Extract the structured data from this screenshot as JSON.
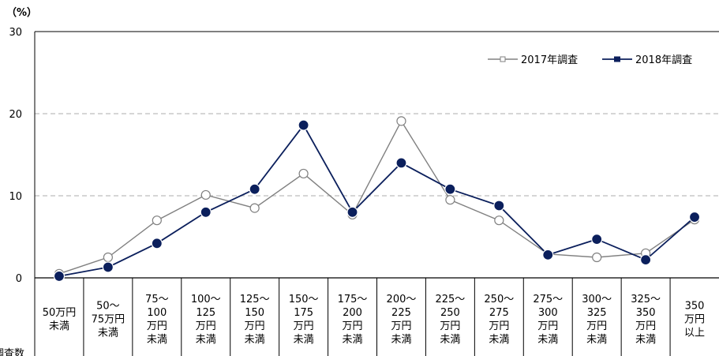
{
  "chart_data": {
    "type": "line",
    "y_unit": "（%）",
    "ylim": [
      0,
      30
    ],
    "y_ticks": [
      "0",
      "10",
      "20",
      "30"
    ],
    "grid": true,
    "legend_position": "top-right",
    "categories": [
      [
        "50万円",
        "未満"
      ],
      [
        "50～",
        "75万円",
        "未満"
      ],
      [
        "75～",
        "100",
        "万円",
        "未満"
      ],
      [
        "100～",
        "125",
        "万円",
        "未満"
      ],
      [
        "125～",
        "150",
        "万円",
        "未満"
      ],
      [
        "150～",
        "175",
        "万円",
        "未満"
      ],
      [
        "175～",
        "200",
        "万円",
        "未満"
      ],
      [
        "200～",
        "225",
        "万円",
        "未満"
      ],
      [
        "225～",
        "250",
        "万円",
        "未満"
      ],
      [
        "250～",
        "275",
        "万円",
        "未満"
      ],
      [
        "275～",
        "300",
        "万円",
        "未満"
      ],
      [
        "300～",
        "325",
        "万円",
        "未満"
      ],
      [
        "325～",
        "350",
        "万円",
        "未満"
      ],
      [
        "350",
        "万円",
        "以上"
      ]
    ],
    "series": [
      {
        "name": "2017年調査",
        "color": "#808080",
        "marker": "open-circle",
        "values": [
          0.5,
          2.5,
          7.0,
          10.1,
          8.5,
          12.7,
          7.7,
          19.1,
          9.5,
          7.0,
          2.9,
          2.5,
          3.0,
          7.1
        ]
      },
      {
        "name": "2018年調査",
        "color": "#0b1f5c",
        "marker": "filled-circle",
        "values": [
          0.2,
          1.3,
          4.2,
          8.0,
          10.8,
          18.6,
          8.0,
          14.0,
          10.8,
          8.8,
          2.8,
          4.7,
          2.2,
          7.4
        ]
      }
    ],
    "side_label": "調査数"
  }
}
